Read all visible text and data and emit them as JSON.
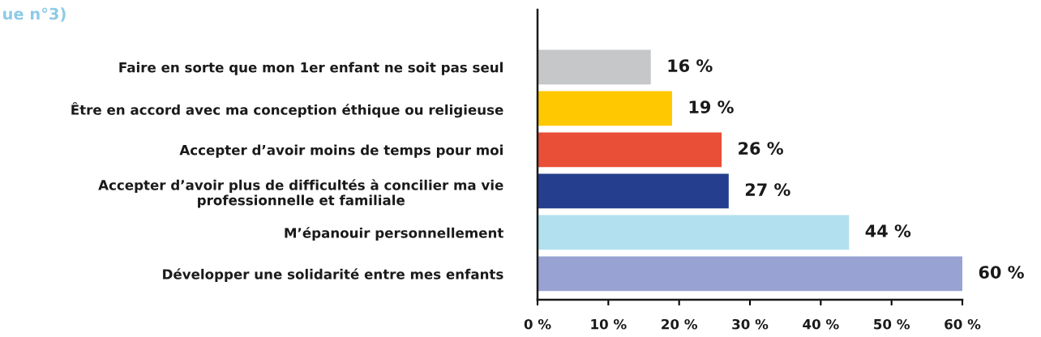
{
  "chart_data": {
    "type": "bar",
    "orientation": "horizontal",
    "title": "ue n°3)",
    "categories": [
      "Faire en sorte que mon 1er enfant ne soit pas seul",
      "Être en accord avec ma conception éthique ou religieuse",
      "Accepter d’avoir moins de temps pour moi",
      "Accepter d’avoir plus de difficultés à concilier ma vie\nprofessionnelle et familiale",
      "M’épanouir personnellement",
      "Développer une solidarité entre mes enfants"
    ],
    "values": [
      16,
      19,
      26,
      27,
      44,
      60
    ],
    "colors": [
      "#c6c7c9",
      "#ffc800",
      "#e94e37",
      "#253f8e",
      "#b2e0ee",
      "#98a3d3"
    ],
    "value_labels": [
      "16 %",
      "19 %",
      "26 %",
      "27 %",
      "44 %",
      "60 %"
    ],
    "xlim": [
      0,
      60
    ],
    "xticks": [
      {
        "value": 0,
        "label": "0 %"
      },
      {
        "value": 10,
        "label": "10 %"
      },
      {
        "value": 20,
        "label": "20 %"
      },
      {
        "value": 30,
        "label": "30 %"
      },
      {
        "value": 40,
        "label": "40 %"
      },
      {
        "value": 50,
        "label": "50 %"
      },
      {
        "value": 60,
        "label": "60 %"
      }
    ],
    "grid": false,
    "legend": false
  }
}
